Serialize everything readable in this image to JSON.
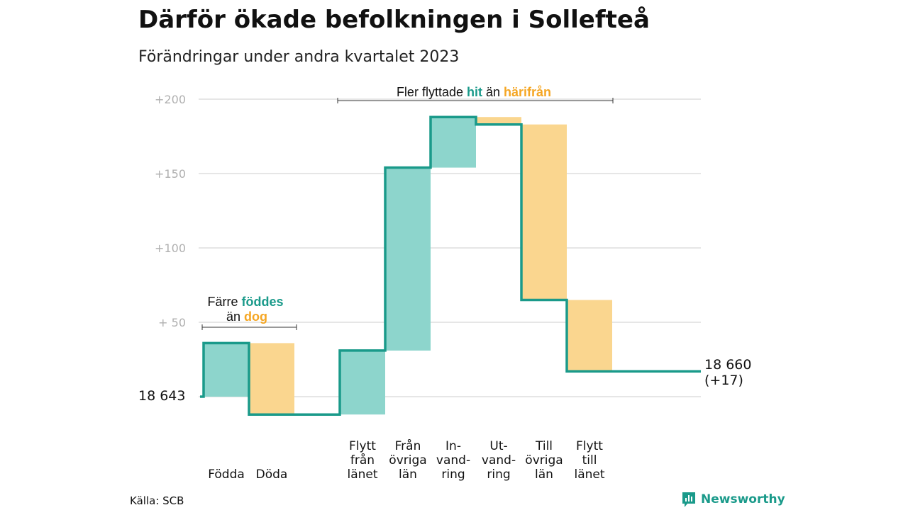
{
  "header": {
    "title": "Därför ökade befolkningen i Sollefteå",
    "subtitle": "Förändringar under andra kvartalet 2023"
  },
  "footer": {
    "source": "Källa: SCB",
    "brand": "Newsworthy"
  },
  "colors": {
    "increase": "#8dd5cc",
    "decrease": "#fad68f",
    "line": "#1a9a8a",
    "grid": "#dddddd",
    "highlight_green": "#1a9a8a",
    "highlight_orange": "#f5a623"
  },
  "chart_data": {
    "type": "bar",
    "subtype": "waterfall",
    "title": "Därför ökade befolkningen i Sollefteå",
    "subtitle": "Förändringar under andra kvartalet 2023",
    "start_label": "18  643",
    "start_value": 18643,
    "end_label_lines": [
      "18 660",
      "(+17)"
    ],
    "end_value": 18660,
    "y_axis": {
      "ticks": [
        0,
        50,
        100,
        150,
        200
      ],
      "tick_labels": [
        "",
        "+  50",
        "+100",
        "+150",
        "+200"
      ],
      "ylim": [
        -12,
        205
      ],
      "grid": true
    },
    "steps": [
      {
        "label_lines": [
          "Födda"
        ],
        "value": 36,
        "kind": "increase"
      },
      {
        "label_lines": [
          "Döda"
        ],
        "value": -48,
        "kind": "decrease"
      },
      {
        "label_lines": [
          "Flytt",
          "från",
          "länet"
        ],
        "value": 43,
        "kind": "increase"
      },
      {
        "label_lines": [
          "Från",
          "övriga",
          "län"
        ],
        "value": 123,
        "kind": "increase"
      },
      {
        "label_lines": [
          "In-",
          "vand-",
          "ring"
        ],
        "value": 34,
        "kind": "increase"
      },
      {
        "label_lines": [
          "Ut-",
          "vand-",
          "ring"
        ],
        "value": -5,
        "kind": "decrease"
      },
      {
        "label_lines": [
          "Till",
          "övriga",
          "län"
        ],
        "value": -118,
        "kind": "decrease"
      },
      {
        "label_lines": [
          "Flytt",
          "till",
          "länet"
        ],
        "value": -48,
        "kind": "decrease"
      }
    ],
    "annotations": {
      "births": {
        "line1": [
          "Färre ",
          "föddes"
        ],
        "line2": [
          "än ",
          "dog"
        ]
      },
      "migration": {
        "parts": [
          "Fler flyttade ",
          "hit",
          " än ",
          "härifrån"
        ]
      }
    }
  }
}
